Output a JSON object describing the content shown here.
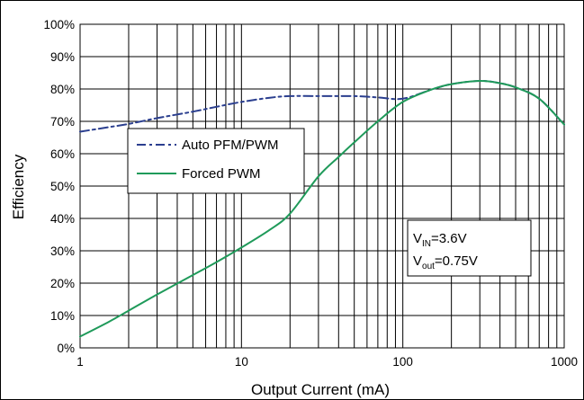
{
  "chart_data": {
    "type": "line",
    "title": "",
    "xlabel": "Output Current (mA)",
    "ylabel": "Efficiency",
    "xscale": "log",
    "xlim": [
      1,
      1000
    ],
    "ylim": [
      0,
      100
    ],
    "x_ticks": [
      1,
      10,
      100,
      1000
    ],
    "x_tick_labels": [
      "1",
      "10",
      "100",
      "1000"
    ],
    "y_ticks": [
      0,
      10,
      20,
      30,
      40,
      50,
      60,
      70,
      80,
      90,
      100
    ],
    "y_tick_labels": [
      "0%",
      "10%",
      "20%",
      "30%",
      "40%",
      "50%",
      "60%",
      "70%",
      "80%",
      "90%",
      "100%"
    ],
    "grid": true,
    "legend_position": "middle-left",
    "series": [
      {
        "name": "Auto PFM/PWM",
        "color": "#2b3f8f",
        "dash": "dash-dot",
        "x": [
          1,
          1.5,
          2,
          3,
          5,
          7,
          10,
          15,
          20,
          30,
          50,
          70,
          100,
          150,
          200,
          300,
          400,
          500,
          700,
          1000
        ],
        "y": [
          66.8,
          68.2,
          69.2,
          71,
          73,
          74.5,
          76,
          77.3,
          77.8,
          77.8,
          77.8,
          77.4,
          77,
          79.8,
          81.5,
          82.5,
          81.8,
          80.5,
          77,
          69
        ]
      },
      {
        "name": "Forced PWM",
        "color": "#1f9a5a",
        "dash": "solid",
        "x": [
          1,
          1.5,
          2,
          3,
          5,
          7,
          10,
          15,
          20,
          30,
          40,
          50,
          70,
          100,
          150,
          200,
          300,
          400,
          500,
          700,
          1000
        ],
        "y": [
          3.5,
          8,
          11.5,
          16.5,
          22.5,
          26.5,
          31,
          36.5,
          41.5,
          53,
          59,
          63.5,
          70,
          76,
          79.8,
          81.5,
          82.5,
          81.8,
          80.5,
          77,
          69
        ]
      }
    ],
    "annotation": {
      "line1_main": "V",
      "line1_sub": "IN",
      "line1_rest": "=3.6V",
      "line2_main": "V",
      "line2_sub": "out",
      "line2_rest": "=0.75V"
    }
  }
}
